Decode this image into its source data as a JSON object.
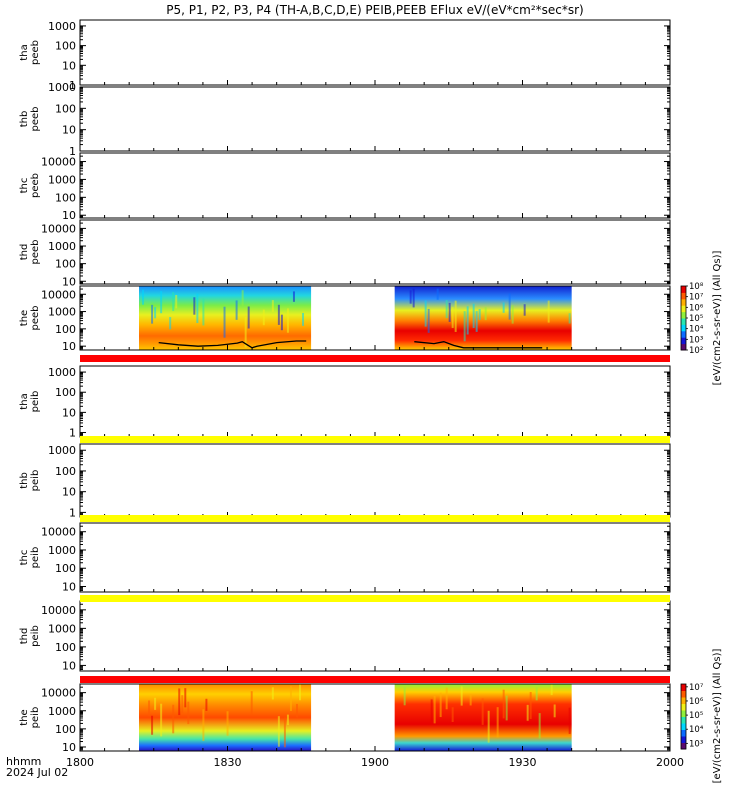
{
  "title": "P5, P1, P2, P3, P4 (TH-A,B,C,D,E) PEIB,PEEB EFlux eV/(eV*cm²*sec*sr)",
  "colorbar_label": "[eV/(cm2-s-sr-eV)] (All Qs)]",
  "time_axis": {
    "header_1": "hhmm",
    "header_2": "2024 Jul 02",
    "ticks": [
      "1800",
      "1830",
      "1900",
      "1930",
      "2000"
    ],
    "range_hhmm": [
      "1800",
      "2000"
    ]
  },
  "chart_data": [
    {
      "type": "heatmap",
      "probe": "tha",
      "product": "peeb",
      "ylabel": [
        "tha",
        "peeb"
      ],
      "yscale": "log",
      "yticks": [
        "1",
        "10",
        "100",
        "1000"
      ],
      "ylim": [
        1,
        2000
      ],
      "has_data": false
    },
    {
      "type": "heatmap",
      "probe": "thb",
      "product": "peeb",
      "ylabel": [
        "thb",
        "peeb"
      ],
      "yscale": "log",
      "yticks": [
        "1",
        "10",
        "100",
        "1000"
      ],
      "ylim": [
        1,
        1000
      ],
      "has_data": false
    },
    {
      "type": "heatmap",
      "probe": "thc",
      "product": "peeb",
      "ylabel": [
        "thc",
        "peeb"
      ],
      "yscale": "log",
      "yticks": [
        "10",
        "100",
        "1000",
        "10000"
      ],
      "ylim": [
        7,
        30000
      ],
      "has_data": false
    },
    {
      "type": "heatmap",
      "probe": "thd",
      "product": "peeb",
      "ylabel": [
        "thd",
        "peeb"
      ],
      "yscale": "log",
      "yticks": [
        "10",
        "100",
        "1000",
        "10000"
      ],
      "ylim": [
        7,
        30000
      ],
      "has_data": false
    },
    {
      "type": "heatmap",
      "probe": "the",
      "product": "peeb",
      "ylabel": [
        "the",
        "peeb"
      ],
      "yscale": "log",
      "yticks": [
        "10",
        "100",
        "1000",
        "10000"
      ],
      "ylim": [
        6,
        30000
      ],
      "has_data": true,
      "data_intervals": [
        [
          "1812",
          "1847"
        ],
        [
          "1904",
          "1940"
        ]
      ],
      "colorbar": {
        "scale": "log",
        "range_exp": [
          2,
          8
        ],
        "tick_exp": [
          2,
          3,
          4,
          5,
          6,
          7,
          8
        ],
        "tick_labels": [
          "10²",
          "10³",
          "10⁴",
          "10⁵",
          "10⁶",
          "10⁷",
          "10⁸"
        ]
      },
      "overlay_line": {
        "color": "#000000",
        "points": [
          [
            "1816",
            16
          ],
          [
            "1820",
            12
          ],
          [
            "1824",
            10
          ],
          [
            "1828",
            11
          ],
          [
            "1832",
            15
          ],
          [
            "1833",
            18
          ],
          [
            "1834",
            12
          ],
          [
            "1835",
            8
          ],
          [
            "1836",
            10
          ],
          [
            "1840",
            16
          ],
          [
            "1844",
            20
          ],
          [
            "1846",
            20
          ],
          [
            "1908",
            18
          ],
          [
            "1912",
            14
          ],
          [
            "1914",
            18
          ],
          [
            "1916",
            11
          ],
          [
            "1918",
            8
          ],
          [
            "1934",
            8
          ]
        ]
      }
    },
    {
      "type": "heatmap",
      "probe": "tha",
      "product": "peib",
      "ylabel": [
        "tha",
        "peib"
      ],
      "yscale": "log",
      "yticks": [
        "1",
        "10",
        "100",
        "1000"
      ],
      "ylim": [
        0.6,
        2000
      ],
      "has_data": false
    },
    {
      "type": "heatmap",
      "probe": "thb",
      "product": "peib",
      "ylabel": [
        "thb",
        "peib"
      ],
      "yscale": "log",
      "yticks": [
        "1",
        "10",
        "100",
        "1000"
      ],
      "ylim": [
        0.6,
        2000
      ],
      "has_data": false
    },
    {
      "type": "heatmap",
      "probe": "thc",
      "product": "peib",
      "ylabel": [
        "thc",
        "peib"
      ],
      "yscale": "log",
      "yticks": [
        "10",
        "100",
        "1000",
        "10000"
      ],
      "ylim": [
        5,
        30000
      ],
      "has_data": false
    },
    {
      "type": "heatmap",
      "probe": "thd",
      "product": "peib",
      "ylabel": [
        "thd",
        "peib"
      ],
      "yscale": "log",
      "yticks": [
        "10",
        "100",
        "1000",
        "10000"
      ],
      "ylim": [
        5,
        30000
      ],
      "has_data": false
    },
    {
      "type": "heatmap",
      "probe": "the",
      "product": "peib",
      "ylabel": [
        "the",
        "peib"
      ],
      "yscale": "log",
      "yticks": [
        "10",
        "100",
        "1000",
        "10000"
      ],
      "ylim": [
        6,
        30000
      ],
      "has_data": true,
      "data_intervals": [
        [
          "1812",
          "1847"
        ],
        [
          "1904",
          "1940"
        ]
      ],
      "colorbar": {
        "scale": "log",
        "range_exp": [
          2.6,
          7.2
        ],
        "tick_exp": [
          3,
          4,
          5,
          6,
          7
        ],
        "tick_labels": [
          "10³",
          "10⁴",
          "10⁵",
          "10⁶",
          "10⁷"
        ]
      },
      "overlay_line": {
        "color": "#000000",
        "points": [
          [
            "1816",
            22000
          ],
          [
            "1846",
            22000
          ],
          [
            "1909",
            22000
          ],
          [
            "1934",
            22000
          ]
        ]
      }
    }
  ],
  "status_bars": [
    {
      "after_panel": 4,
      "color": "#ff0000"
    },
    {
      "after_panel": 5,
      "color": "#ffff00"
    },
    {
      "after_panel": 6,
      "color": "#ffff00"
    },
    {
      "after_panel": 7,
      "color": "#ffff00"
    },
    {
      "after_panel": 8,
      "color": "#ff0000"
    }
  ]
}
